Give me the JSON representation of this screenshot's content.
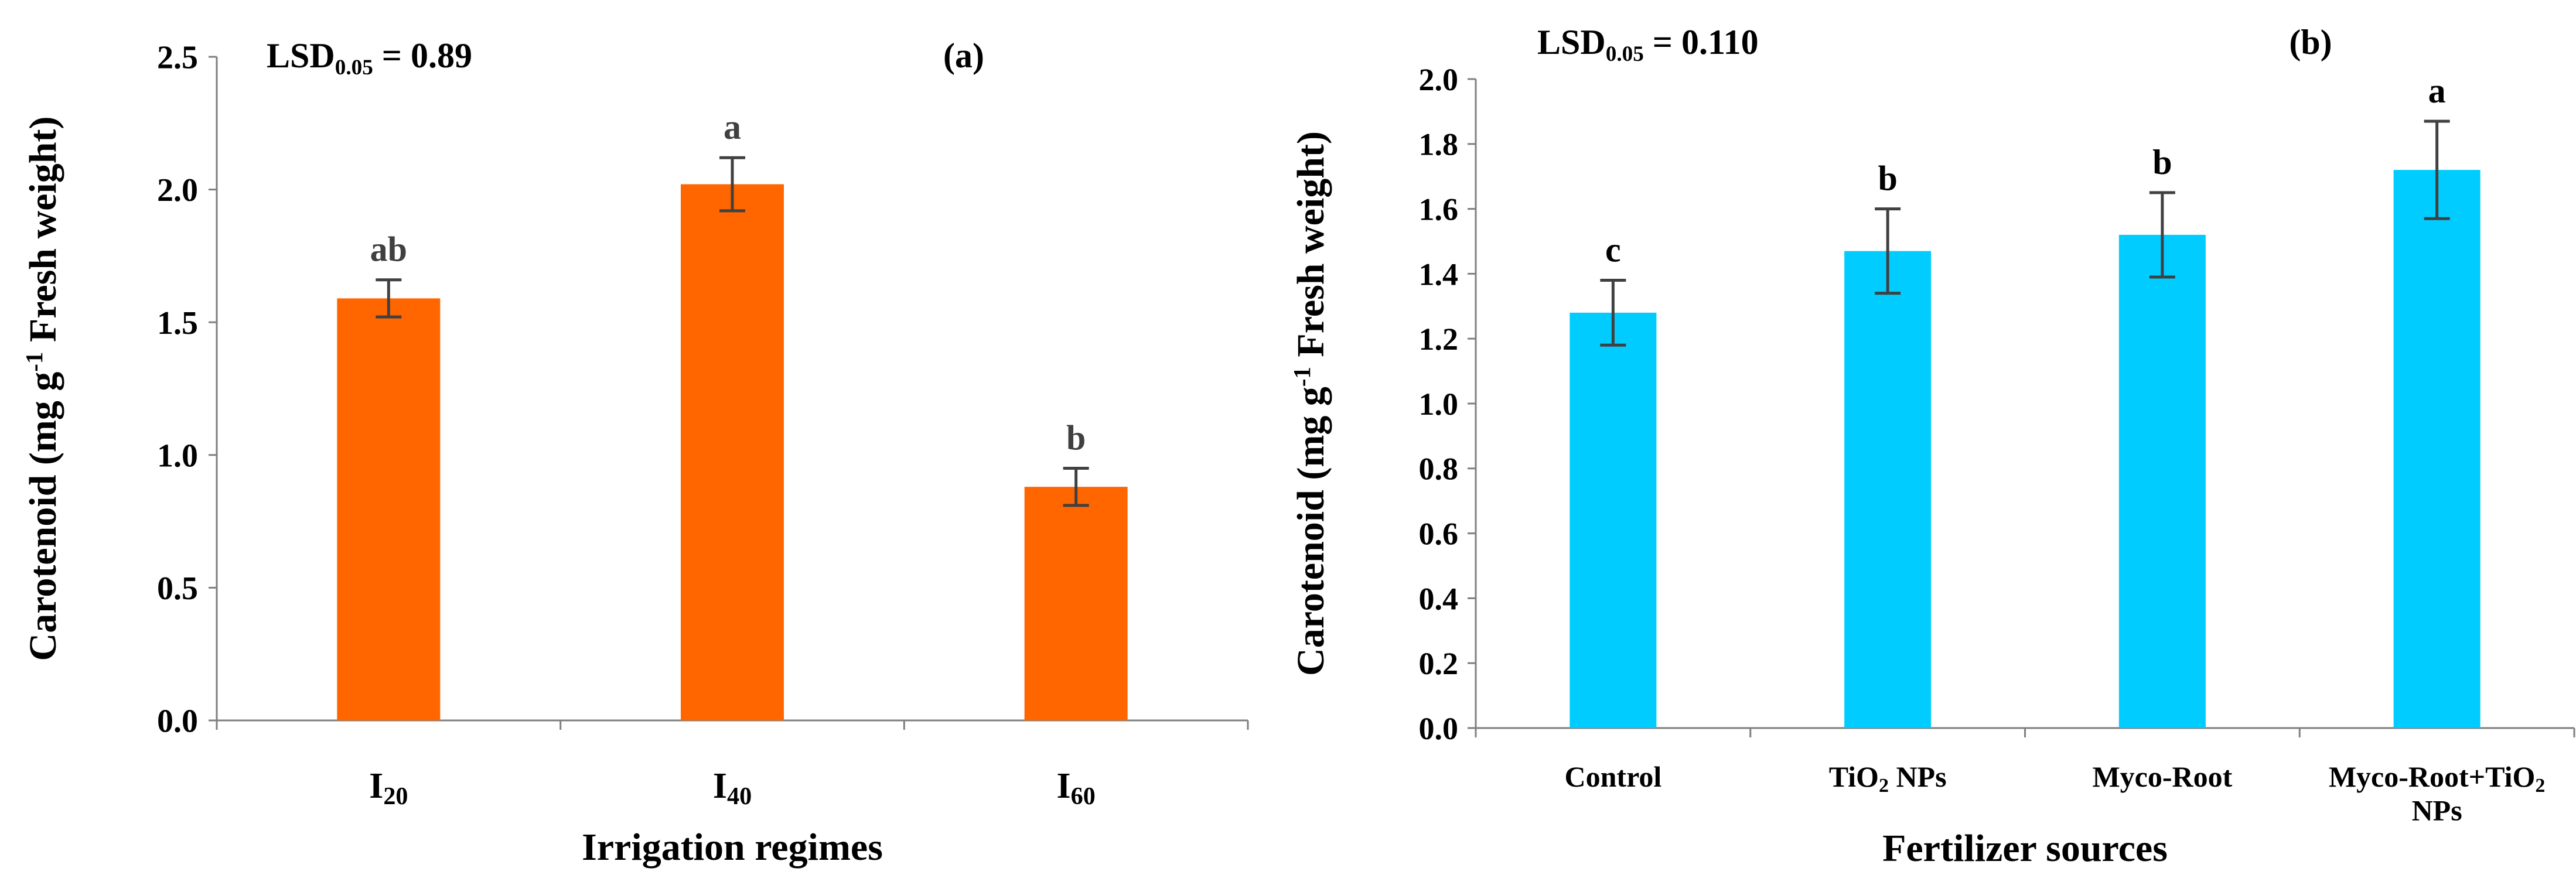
{
  "chart_data": [
    {
      "id": "a",
      "type": "bar",
      "panel_label": "(a)",
      "lsd_prefix": "LSD",
      "lsd_sub": "0.05",
      "lsd_value": " = 0.89",
      "xlabel": "Irrigation regimes",
      "ylabel_main": "Carotenoid (mg g",
      "ylabel_sup": "-1",
      "ylabel_rest": " Fresh weight)",
      "ylim": [
        0,
        2.5
      ],
      "yticks": [
        "0.0",
        "0.5",
        "1.0",
        "1.5",
        "2.0",
        "2.5"
      ],
      "categories": [
        {
          "parts": [
            {
              "t": "I"
            },
            {
              "t": "20",
              "sub": true
            }
          ]
        },
        {
          "parts": [
            {
              "t": "I"
            },
            {
              "t": "40",
              "sub": true
            }
          ]
        },
        {
          "parts": [
            {
              "t": "I"
            },
            {
              "t": "60",
              "sub": true
            }
          ]
        }
      ],
      "values": [
        1.59,
        2.02,
        0.88
      ],
      "errors": [
        0.07,
        0.1,
        0.07
      ],
      "letters": [
        "ab",
        "a",
        "b"
      ],
      "bar_color": "#FF6600",
      "letter_color": "#404040"
    },
    {
      "id": "b",
      "type": "bar",
      "panel_label": "(b)",
      "lsd_prefix": "LSD",
      "lsd_sub": "0.05",
      "lsd_value": " = 0.110",
      "xlabel": "Fertilizer sources",
      "ylabel_main": "Carotenoid (mg g",
      "ylabel_sup": "-1",
      "ylabel_rest": " Fresh weight)",
      "ylim": [
        0,
        2.0
      ],
      "yticks": [
        "0.0",
        "0.2",
        "0.4",
        "0.6",
        "0.8",
        "1.0",
        "1.2",
        "1.4",
        "1.6",
        "1.8",
        "2.0"
      ],
      "categories": [
        {
          "parts": [
            {
              "t": "Control"
            }
          ]
        },
        {
          "parts": [
            {
              "t": "TiO"
            },
            {
              "t": "2",
              "sub": true
            },
            {
              "t": " NPs"
            }
          ]
        },
        {
          "parts": [
            {
              "t": "Myco-Root"
            }
          ]
        },
        {
          "parts": [
            {
              "t": "Myco-Root+TiO"
            },
            {
              "t": "2",
              "sub": true
            }
          ],
          "line2": "NPs"
        }
      ],
      "values": [
        1.28,
        1.47,
        1.52,
        1.72
      ],
      "errors": [
        0.1,
        0.13,
        0.13,
        0.15
      ],
      "letters": [
        "c",
        "b",
        "b",
        "a"
      ],
      "bar_color": "#00CCFF",
      "letter_color": "#000000"
    }
  ]
}
